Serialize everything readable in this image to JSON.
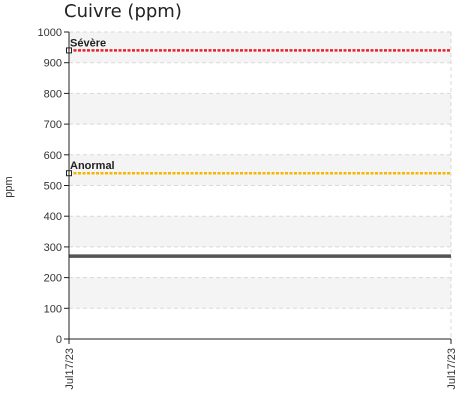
{
  "chart_data": {
    "type": "line",
    "title": "Cuivre (ppm)",
    "ylabel": "ppm",
    "xlabel": "",
    "ylim": [
      0,
      1000
    ],
    "yticks": [
      0,
      100,
      200,
      300,
      400,
      500,
      600,
      700,
      800,
      900,
      1000
    ],
    "ytick_labels": [
      "0",
      "100",
      "200",
      "300",
      "400",
      "500",
      "600",
      "700",
      "800",
      "900",
      "1000"
    ],
    "x": [
      "Jul17/23",
      "Jul17/23"
    ],
    "grid": true,
    "series": [
      {
        "values": [
          270,
          270
        ],
        "color": "#555555",
        "style": "solid"
      }
    ],
    "thresholds": [
      {
        "label": "Sévère",
        "value": 940,
        "color": "#e8212a"
      },
      {
        "label": "Anormal",
        "value": 540,
        "color": "#f5b800"
      }
    ]
  }
}
